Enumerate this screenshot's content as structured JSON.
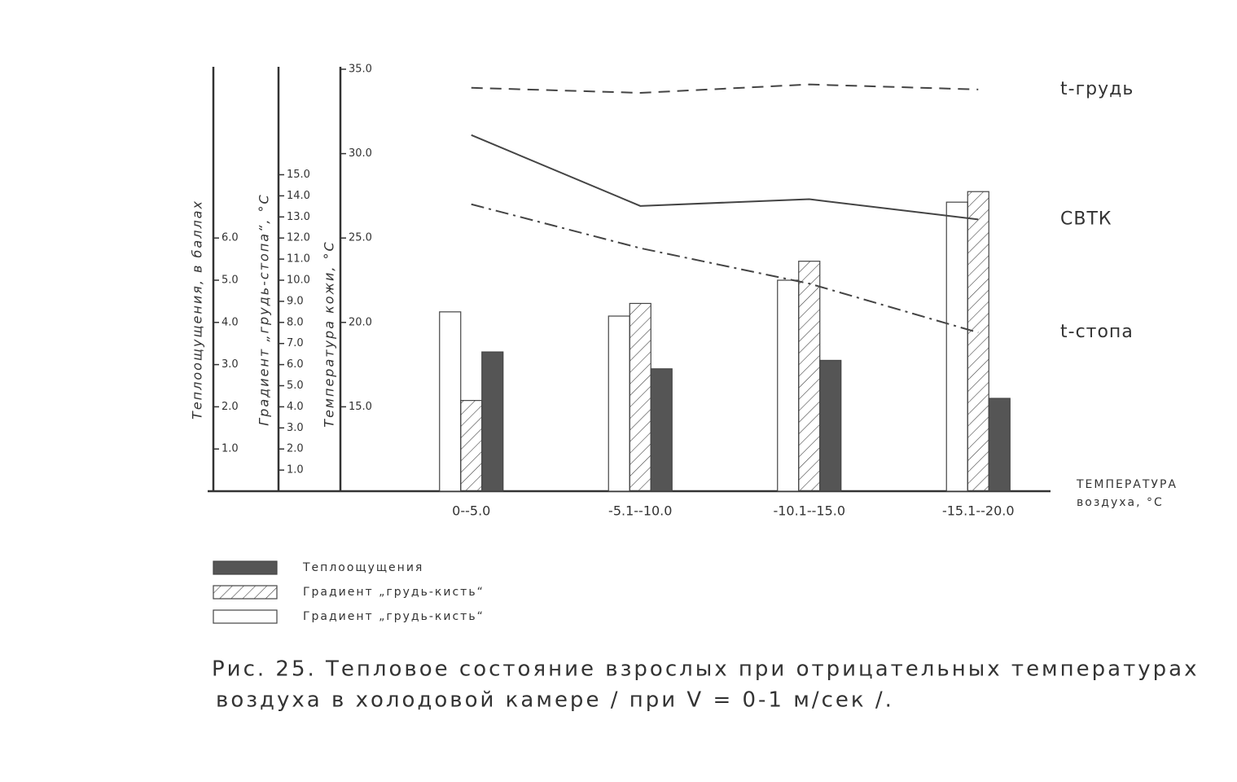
{
  "chart_data": {
    "type": "bar",
    "categories": [
      "0--5.0",
      "-5.1--10.0",
      "-10.1--15.0",
      "-15.1--20.0"
    ],
    "xlabel": [
      "ТЕМПЕРАТУРА",
      "воздуха, °С"
    ],
    "ylabel": "Температура кожи, °С",
    "y2label": "Градиент „грудь-стопа“, °С",
    "y3label": "Теплоощущения, в баллах",
    "ylim": [
      10,
      35
    ],
    "yticks": [
      {
        "value": 15,
        "label": "15.0"
      },
      {
        "value": 20,
        "label": "20.0"
      },
      {
        "value": 25,
        "label": "25.0"
      },
      {
        "value": 30,
        "label": "30.0"
      },
      {
        "value": 35,
        "label": "35.0"
      }
    ],
    "y2lim": [
      0,
      20
    ],
    "y2ticks": [
      {
        "value": 1,
        "label": "1.0"
      },
      {
        "value": 2,
        "label": "2.0"
      },
      {
        "value": 3,
        "label": "3.0"
      },
      {
        "value": 4,
        "label": "4.0"
      },
      {
        "value": 5,
        "label": "5.0"
      },
      {
        "value": 6,
        "label": "6.0"
      },
      {
        "value": 7,
        "label": "7.0"
      },
      {
        "value": 8,
        "label": "8.0"
      },
      {
        "value": 9,
        "label": "9.0"
      },
      {
        "value": 10,
        "label": "10.0"
      },
      {
        "value": 11,
        "label": "11.0"
      },
      {
        "value": 12,
        "label": "12.0"
      },
      {
        "value": 13,
        "label": "13.0"
      },
      {
        "value": 14,
        "label": "14.0"
      },
      {
        "value": 15,
        "label": "15.0"
      }
    ],
    "y3lim": [
      0,
      10
    ],
    "y3ticks": [
      {
        "value": 1,
        "label": "1.0"
      },
      {
        "value": 2,
        "label": "2.0"
      },
      {
        "value": 3,
        "label": "3.0"
      },
      {
        "value": 4,
        "label": "4.0"
      },
      {
        "value": 5,
        "label": "5.0"
      },
      {
        "value": 6,
        "label": "6.0"
      }
    ],
    "series": [
      {
        "name": "Градиент „грудь-кисть“",
        "type": "bar",
        "style": "open",
        "color": "#ffffff",
        "axis": "y2",
        "values": [
          8.5,
          8.3,
          10.0,
          13.7
        ]
      },
      {
        "name": "Градиент „грудь-кисть“",
        "type": "bar",
        "style": "hatched",
        "color": "#444444",
        "axis": "y2",
        "values": [
          4.3,
          8.9,
          10.9,
          14.2
        ]
      },
      {
        "name": "Теплоощущения",
        "type": "bar",
        "style": "solid",
        "color": "#555555",
        "axis": "y3",
        "values": [
          3.3,
          2.9,
          3.1,
          2.2
        ]
      },
      {
        "name": "t-грудь",
        "type": "line",
        "style": "dashed",
        "color": "#444444",
        "values": [
          33.9,
          33.6,
          34.1,
          33.8
        ]
      },
      {
        "name": "СВТК",
        "type": "line",
        "style": "solid",
        "color": "#444444",
        "values": [
          31.1,
          26.9,
          27.3,
          26.1
        ]
      },
      {
        "name": "t-стопа",
        "type": "line",
        "style": "dashdot",
        "color": "#444444",
        "values": [
          27.0,
          24.4,
          22.3,
          19.4
        ]
      }
    ],
    "caption": [
      "Рис. 25. Тепловое состояние взрослых при отрицательных температурах",
      "воздуха в холодовой камере / при V = 0-1 м/сек /."
    ]
  }
}
